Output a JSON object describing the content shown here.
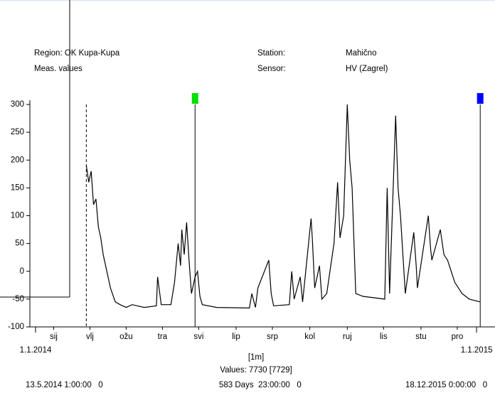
{
  "header": {
    "region": "Region: OK Kupa-Kupa",
    "meas": "Meas. values",
    "station_label": "Station:",
    "station": "Mahično",
    "sensor_label": "Sensor:",
    "sensor": "HV (Zagrel)"
  },
  "chart_data": {
    "type": "line",
    "x": [
      42,
      44,
      46,
      48,
      50,
      52,
      54,
      56,
      59,
      62,
      66,
      70,
      75,
      80,
      90,
      100,
      101,
      104,
      112,
      115,
      118,
      120,
      121,
      123,
      125,
      127,
      129,
      132,
      134,
      136,
      138,
      150,
      177,
      179,
      182,
      184,
      193,
      195,
      197,
      210,
      212,
      214,
      219,
      221,
      228,
      229,
      231,
      235,
      237,
      241,
      247,
      250,
      252,
      255,
      258,
      260,
      262,
      265,
      271,
      289,
      291,
      293,
      298,
      300,
      302,
      306,
      313,
      315,
      316,
      325,
      327,
      328,
      335,
      338,
      341,
      347,
      353,
      359,
      368
    ],
    "series": [
      {
        "color": "#000000",
        "values": [
          190,
          160,
          180,
          120,
          130,
          80,
          60,
          30,
          0,
          -30,
          -55,
          -60,
          -65,
          -60,
          -65,
          -62,
          -10,
          -60,
          -60,
          -20,
          50,
          10,
          75,
          30,
          88,
          20,
          -40,
          -10,
          0,
          -45,
          -60,
          -65,
          -66,
          -40,
          -65,
          -30,
          20,
          -40,
          -62,
          -60,
          0,
          -50,
          -10,
          -55,
          95,
          60,
          -30,
          10,
          -50,
          -40,
          50,
          160,
          60,
          100,
          300,
          200,
          150,
          -40,
          -45,
          -50,
          150,
          -40,
          280,
          150,
          100,
          -40,
          70,
          10,
          -30,
          100,
          40,
          20,
          75,
          30,
          20,
          -20,
          -40,
          -50,
          -55
        ]
      }
    ],
    "xlim": [
      0,
      372
    ],
    "ylim": [
      -100,
      300
    ],
    "yticks": [
      300,
      250,
      200,
      150,
      100,
      50,
      0,
      -50,
      -100
    ],
    "xticks": [
      {
        "value": 15,
        "label": "sij"
      },
      {
        "value": 45,
        "label": "vlj"
      },
      {
        "value": 75,
        "label": "ožu"
      },
      {
        "value": 105,
        "label": "tra"
      },
      {
        "value": 135,
        "label": "svi"
      },
      {
        "value": 166,
        "label": "lip"
      },
      {
        "value": 196,
        "label": "srp"
      },
      {
        "value": 227,
        "label": "kol"
      },
      {
        "value": 258,
        "label": "ruj"
      },
      {
        "value": 288,
        "label": "lis"
      },
      {
        "value": 319,
        "label": "stu"
      },
      {
        "value": 349,
        "label": "pro"
      }
    ],
    "date_ticks": [
      {
        "value": 0,
        "label": "1.1.2014"
      },
      {
        "value": 365,
        "label": "1.1.2015"
      }
    ],
    "cursors": [
      {
        "x": 42,
        "style": "dashed"
      },
      {
        "x": 132,
        "color": "#00e000"
      },
      {
        "x": 368,
        "color": "#0000ff"
      }
    ]
  },
  "footer": {
    "resolution": "[1m]",
    "count": "Values: 7730 [7729]",
    "start": "13.5.2014 1:00:00   0",
    "span": "583 Days  23:00:00   0",
    "end": "18.12.2015 0:00:00   0"
  }
}
